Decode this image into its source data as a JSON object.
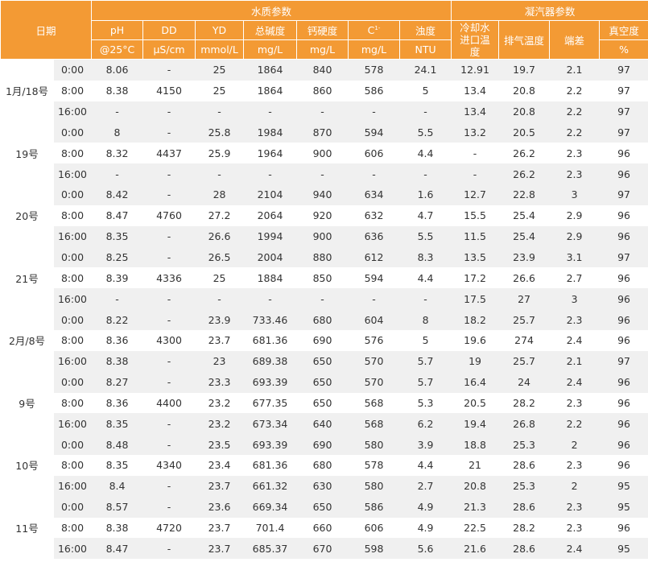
{
  "group_headers": {
    "date": "日期",
    "water": "水质参数",
    "condenser": "凝汽器参数"
  },
  "columns": [
    {
      "name": "pH",
      "unit": "@25°C"
    },
    {
      "name": "DD",
      "unit": "μS/cm"
    },
    {
      "name": "YD",
      "unit": "mmol/L"
    },
    {
      "name": "总碱度",
      "unit": "mg/L"
    },
    {
      "name": "钙硬度",
      "unit": "mg/L"
    },
    {
      "name": "C",
      "sup": "1-",
      "unit": "mg/L"
    },
    {
      "name": "浊度",
      "unit": "NTU"
    },
    {
      "name": "冷却水进口温度"
    },
    {
      "name": "排气温度"
    },
    {
      "name": "端差"
    },
    {
      "name": "真空度",
      "unit": "%"
    }
  ],
  "groups": [
    {
      "date": "1月/18号",
      "rows": [
        {
          "time": "0:00",
          "v": [
            "8.06",
            "-",
            "25",
            "1864",
            "840",
            "578",
            "24.1",
            "12.91",
            "19.7",
            "2.1",
            "97"
          ]
        },
        {
          "time": "8:00",
          "v": [
            "8.38",
            "4150",
            "25",
            "1864",
            "860",
            "586",
            "5",
            "13.4",
            "20.8",
            "2.2",
            "97"
          ]
        },
        {
          "time": "16:00",
          "v": [
            "-",
            "-",
            "-",
            "-",
            "-",
            "-",
            "-",
            "13.4",
            "20.8",
            "2.2",
            "97"
          ]
        }
      ]
    },
    {
      "date": "19号",
      "rows": [
        {
          "time": "0:00",
          "v": [
            "8",
            "-",
            "25.8",
            "1984",
            "870",
            "594",
            "5.5",
            "13.2",
            "20.5",
            "2.2",
            "97"
          ]
        },
        {
          "time": "8:00",
          "v": [
            "8.32",
            "4437",
            "25.9",
            "1964",
            "900",
            "606",
            "4.4",
            "-",
            "26.2",
            "2.3",
            "96"
          ]
        },
        {
          "time": "16:00",
          "v": [
            "-",
            "-",
            "-",
            "-",
            "-",
            "-",
            "-",
            "-",
            "26.2",
            "2.3",
            "96"
          ]
        }
      ]
    },
    {
      "date": "20号",
      "rows": [
        {
          "time": "0:00",
          "v": [
            "8.42",
            "-",
            "28",
            "2104",
            "940",
            "634",
            "1.6",
            "12.7",
            "22.8",
            "3",
            "97"
          ]
        },
        {
          "time": "8:00",
          "v": [
            "8.47",
            "4760",
            "27.2",
            "2064",
            "920",
            "632",
            "4.7",
            "15.5",
            "25.4",
            "2.9",
            "96"
          ]
        },
        {
          "time": "16:00",
          "v": [
            "8.35",
            "-",
            "26.6",
            "1994",
            "900",
            "636",
            "5.5",
            "11.5",
            "25.4",
            "2.9",
            "96"
          ]
        }
      ]
    },
    {
      "date": "21号",
      "rows": [
        {
          "time": "0:00",
          "v": [
            "8.25",
            "-",
            "26.5",
            "2004",
            "880",
            "612",
            "8.3",
            "13.5",
            "23.9",
            "3.1",
            "97"
          ]
        },
        {
          "time": "8:00",
          "v": [
            "8.39",
            "4336",
            "25",
            "1884",
            "850",
            "594",
            "4.4",
            "17.2",
            "26.6",
            "2.7",
            "96"
          ]
        },
        {
          "time": "16:00",
          "v": [
            "-",
            "-",
            "-",
            "-",
            "-",
            "-",
            "-",
            "17.5",
            "27",
            "3",
            "96"
          ]
        }
      ]
    },
    {
      "date": "2月/8号",
      "rows": [
        {
          "time": "0:00",
          "v": [
            "8.22",
            "-",
            "23.9",
            "733.46",
            "680",
            "604",
            "8",
            "18.2",
            "25.7",
            "2.3",
            "96"
          ]
        },
        {
          "time": "8:00",
          "v": [
            "8.36",
            "4300",
            "23.7",
            "681.36",
            "690",
            "576",
            "5",
            "19.6",
            "274",
            "2.4",
            "96"
          ]
        },
        {
          "time": "16:00",
          "v": [
            "8.38",
            "-",
            "23",
            "689.38",
            "650",
            "570",
            "5.7",
            "19",
            "25.7",
            "2.1",
            "97"
          ]
        }
      ]
    },
    {
      "date": "9号",
      "rows": [
        {
          "time": "0:00",
          "v": [
            "8.27",
            "-",
            "23.3",
            "693.39",
            "650",
            "570",
            "5.7",
            "16.4",
            "24",
            "2.4",
            "96"
          ]
        },
        {
          "time": "8:00",
          "v": [
            "8.36",
            "4400",
            "23.2",
            "677.35",
            "650",
            "568",
            "5.3",
            "20.5",
            "28.2",
            "2.3",
            "96"
          ]
        },
        {
          "time": "16:00",
          "v": [
            "8.35",
            "-",
            "23.2",
            "673.34",
            "640",
            "568",
            "6.2",
            "19.4",
            "26.8",
            "2.2",
            "96"
          ]
        }
      ]
    },
    {
      "date": "10号",
      "rows": [
        {
          "time": "0:00",
          "v": [
            "8.48",
            "-",
            "23.5",
            "693.39",
            "690",
            "580",
            "3.9",
            "18.8",
            "25.3",
            "2",
            "96"
          ]
        },
        {
          "time": "8:00",
          "v": [
            "8.35",
            "4340",
            "23.4",
            "681.36",
            "680",
            "578",
            "4.4",
            "21",
            "28.6",
            "2.3",
            "96"
          ]
        },
        {
          "time": "16:00",
          "v": [
            "8.4",
            "-",
            "23.7",
            "661.32",
            "630",
            "580",
            "2.7",
            "20.8",
            "25.3",
            "2",
            "95"
          ]
        }
      ]
    },
    {
      "date": "11号",
      "rows": [
        {
          "time": "0:00",
          "v": [
            "8.57",
            "-",
            "23.6",
            "669.34",
            "650",
            "586",
            "4.9",
            "21.3",
            "28.6",
            "2.3",
            "95"
          ]
        },
        {
          "time": "8:00",
          "v": [
            "8.38",
            "4720",
            "23.7",
            "701.4",
            "660",
            "606",
            "4.9",
            "22.5",
            "28.2",
            "2.3",
            "96"
          ]
        },
        {
          "time": "16:00",
          "v": [
            "8.47",
            "-",
            "23.7",
            "685.37",
            "670",
            "598",
            "5.6",
            "21.6",
            "28.6",
            "2.4",
            "95"
          ]
        }
      ]
    }
  ]
}
